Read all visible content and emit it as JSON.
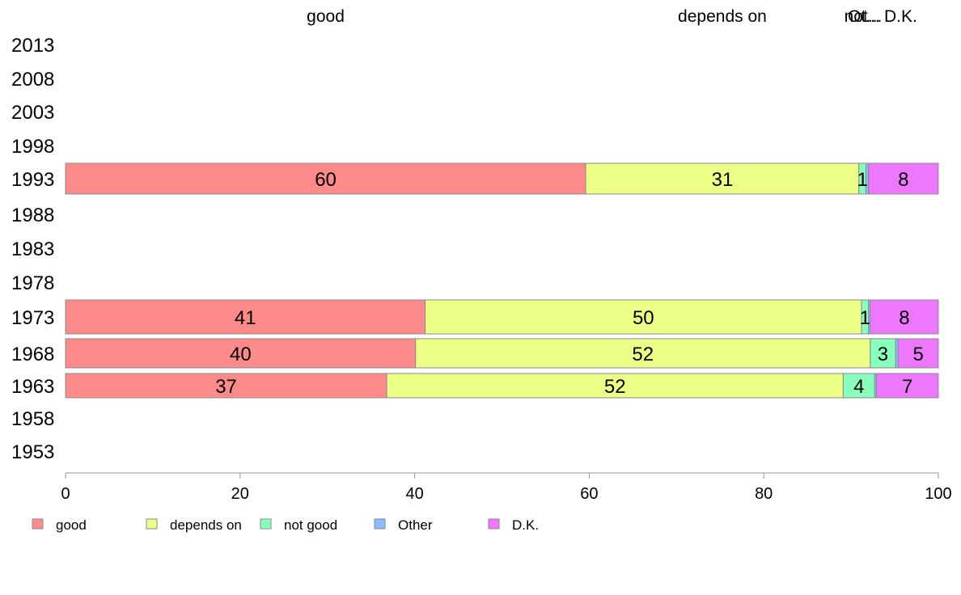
{
  "chart_data": {
    "type": "bar",
    "orientation": "horizontal",
    "stacked": true,
    "title": "",
    "xlabel": "",
    "ylabel": "",
    "xlim": [
      0,
      100
    ],
    "x_ticks": [
      0,
      20,
      40,
      60,
      80,
      100
    ],
    "grid": false,
    "legend_position": "bottom",
    "categories": [
      "2013",
      "2008",
      "2003",
      "1998",
      "1993",
      "1988",
      "1983",
      "1978",
      "1973",
      "1968",
      "1963",
      "1958",
      "1953"
    ],
    "series": [
      {
        "name": "good",
        "color": "#FF8A8A",
        "values": [
          null,
          null,
          null,
          null,
          59.6,
          null,
          null,
          null,
          41.2,
          40.1,
          36.8,
          null,
          null
        ]
      },
      {
        "name": "depends on",
        "color": "#EEFF88",
        "values": [
          null,
          null,
          null,
          null,
          31.3,
          null,
          null,
          null,
          50.0,
          52.1,
          52.3,
          null,
          null
        ]
      },
      {
        "name": "not good",
        "color": "#88FFBB",
        "values": [
          null,
          null,
          null,
          null,
          0.8,
          null,
          null,
          null,
          0.8,
          2.9,
          3.6,
          null,
          null
        ]
      },
      {
        "name": "Other",
        "color": "#88BBFF",
        "values": [
          null,
          null,
          null,
          null,
          0.3,
          null,
          null,
          null,
          0.2,
          0.3,
          0.2,
          null,
          null
        ]
      },
      {
        "name": "D.K.",
        "color": "#EE77FF",
        "values": [
          null,
          null,
          null,
          null,
          8.0,
          null,
          null,
          null,
          7.8,
          4.6,
          7.1,
          null,
          null
        ]
      }
    ],
    "data_labels": {
      "1993": [
        "60",
        "31",
        "1",
        "",
        "8"
      ],
      "1973": [
        "41",
        "50",
        "1",
        "",
        "8"
      ],
      "1968": [
        "40",
        "52",
        "3",
        "",
        "5"
      ],
      "1963": [
        "37",
        "52",
        "4",
        "",
        "7"
      ]
    },
    "top_labels": [
      "good",
      "depends on",
      "not...",
      "Ot...",
      "D.K."
    ]
  }
}
